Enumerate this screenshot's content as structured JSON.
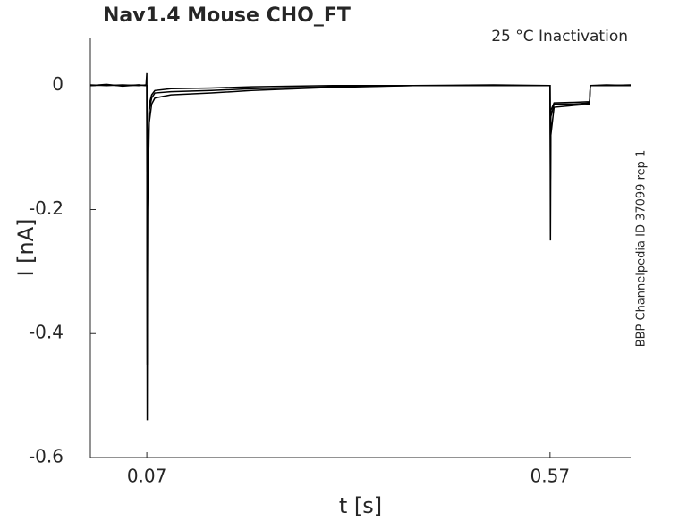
{
  "chart_data": {
    "type": "line",
    "title": "Nav1.4  Mouse  CHO_FT",
    "annotation": "25 °C  Inactivation",
    "side_label": "BBP Channelpedia ID 37099 rep 1",
    "x_label": "t [s]",
    "y_label": "I [nA]",
    "x": [
      0,
      0.02,
      0.04,
      0.06,
      0.069,
      0.07,
      0.0705,
      0.071,
      0.073,
      0.076,
      0.08,
      0.1,
      0.15,
      0.2,
      0.3,
      0.4,
      0.5,
      0.569,
      0.57,
      0.5705,
      0.571,
      0.575,
      0.6,
      0.619,
      0.62,
      0.64,
      0.67
    ],
    "series": [
      {
        "color": "#000000",
        "values": [
          0,
          0.002,
          -0.001,
          0.001,
          0,
          0.02,
          -0.54,
          -0.2,
          -0.06,
          -0.03,
          -0.02,
          -0.015,
          -0.012,
          -0.008,
          -0.003,
          0,
          0,
          0,
          0,
          -0.25,
          -0.08,
          -0.035,
          -0.032,
          -0.03,
          0,
          0.001,
          0
        ]
      },
      {
        "color": "#000000",
        "values": [
          0.001,
          0,
          0.001,
          0,
          0.001,
          0,
          -0.45,
          -0.15,
          -0.04,
          -0.02,
          -0.012,
          -0.01,
          -0.008,
          -0.005,
          -0.002,
          0,
          0,
          0,
          0,
          -0.15,
          -0.05,
          -0.03,
          -0.03,
          -0.028,
          0,
          0,
          0.001
        ]
      },
      {
        "color": "#000000",
        "values": [
          0,
          0.001,
          0,
          0.001,
          0,
          0,
          -0.3,
          -0.1,
          -0.03,
          -0.015,
          -0.008,
          -0.005,
          -0.004,
          -0.002,
          0,
          0,
          0.001,
          0,
          0,
          -0.1,
          -0.04,
          -0.028,
          -0.027,
          -0.026,
          0,
          0,
          0
        ]
      }
    ],
    "xlim": [
      0,
      0.67
    ],
    "ylim": [
      -0.6,
      0.076
    ],
    "xticks": [
      0.07,
      0.57
    ],
    "yticks": [
      -0.6,
      -0.4,
      -0.2,
      0
    ]
  }
}
